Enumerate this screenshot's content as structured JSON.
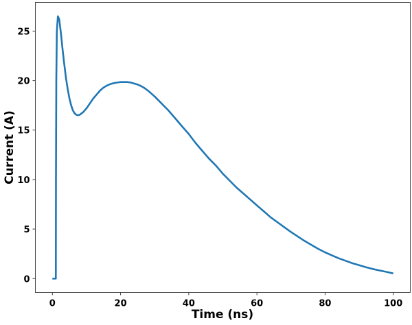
{
  "chart_data": {
    "type": "line",
    "title": "",
    "xlabel": "Time (ns)",
    "ylabel": "Current (A)",
    "xlim": [
      -5,
      105
    ],
    "ylim": [
      -1.4,
      27.9
    ],
    "xticks": [
      0,
      20,
      40,
      60,
      80,
      100
    ],
    "yticks": [
      0,
      5,
      10,
      15,
      20,
      25
    ],
    "grid": false,
    "line_color": "#1f77b4",
    "series": [
      {
        "points": [
          [
            0,
            0
          ],
          [
            1,
            0
          ],
          [
            1.05,
            10
          ],
          [
            1.15,
            20
          ],
          [
            1.3,
            25
          ],
          [
            1.6,
            26.5
          ],
          [
            2,
            26.2
          ],
          [
            2.5,
            24.8
          ],
          [
            3,
            23.1
          ],
          [
            3.5,
            21.6
          ],
          [
            4,
            20.2
          ],
          [
            4.5,
            19.1
          ],
          [
            5,
            18.2
          ],
          [
            5.5,
            17.5
          ],
          [
            6,
            17.0
          ],
          [
            6.5,
            16.7
          ],
          [
            7,
            16.55
          ],
          [
            7.5,
            16.5
          ],
          [
            8,
            16.55
          ],
          [
            9,
            16.8
          ],
          [
            10,
            17.2
          ],
          [
            11,
            17.7
          ],
          [
            12,
            18.2
          ],
          [
            13,
            18.6
          ],
          [
            14,
            19.0
          ],
          [
            15,
            19.3
          ],
          [
            16,
            19.5
          ],
          [
            17,
            19.65
          ],
          [
            18,
            19.75
          ],
          [
            19,
            19.8
          ],
          [
            20,
            19.85
          ],
          [
            21,
            19.85
          ],
          [
            22,
            19.85
          ],
          [
            23,
            19.8
          ],
          [
            24,
            19.7
          ],
          [
            25,
            19.6
          ],
          [
            26,
            19.45
          ],
          [
            27,
            19.25
          ],
          [
            28,
            19.0
          ],
          [
            29,
            18.7
          ],
          [
            30,
            18.4
          ],
          [
            32,
            17.7
          ],
          [
            34,
            17.0
          ],
          [
            36,
            16.2
          ],
          [
            38,
            15.4
          ],
          [
            40,
            14.6
          ],
          [
            42,
            13.7
          ],
          [
            44,
            12.9
          ],
          [
            46,
            12.1
          ],
          [
            48,
            11.4
          ],
          [
            50,
            10.6
          ],
          [
            52,
            9.9
          ],
          [
            54,
            9.2
          ],
          [
            56,
            8.6
          ],
          [
            58,
            8.0
          ],
          [
            60,
            7.4
          ],
          [
            62,
            6.8
          ],
          [
            64,
            6.2
          ],
          [
            66,
            5.7
          ],
          [
            68,
            5.2
          ],
          [
            70,
            4.7
          ],
          [
            72,
            4.25
          ],
          [
            74,
            3.8
          ],
          [
            76,
            3.4
          ],
          [
            78,
            3.0
          ],
          [
            80,
            2.65
          ],
          [
            82,
            2.35
          ],
          [
            84,
            2.05
          ],
          [
            86,
            1.8
          ],
          [
            88,
            1.55
          ],
          [
            90,
            1.35
          ],
          [
            92,
            1.15
          ],
          [
            94,
            0.97
          ],
          [
            96,
            0.82
          ],
          [
            98,
            0.68
          ],
          [
            100,
            0.52
          ]
        ]
      }
    ]
  }
}
